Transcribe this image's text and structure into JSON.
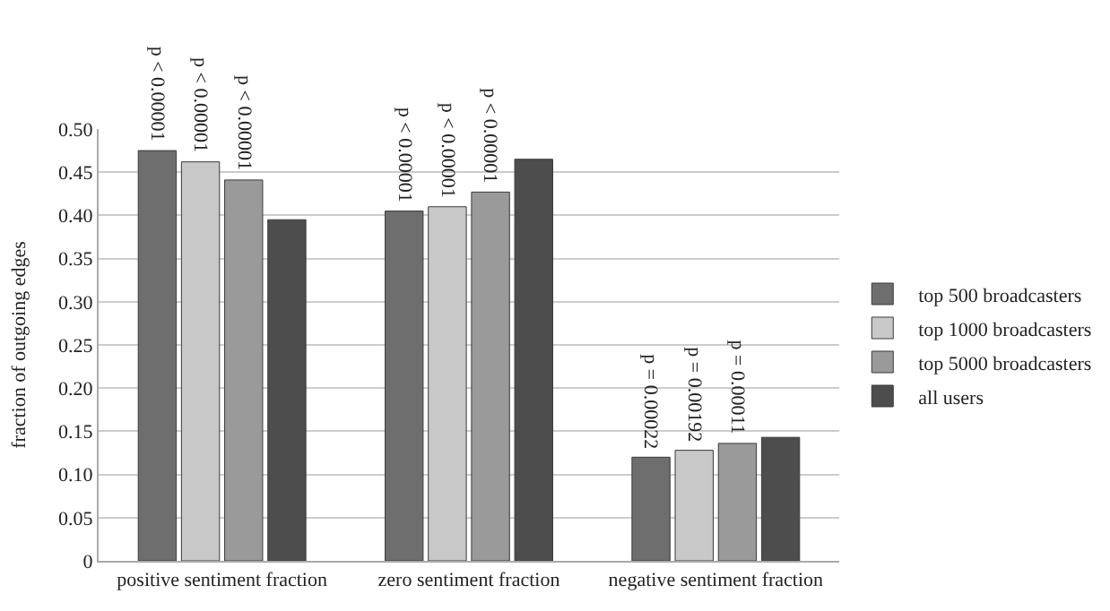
{
  "chart_data": {
    "type": "bar",
    "ylabel": "fraction of outgoing edges",
    "categories": [
      "positive sentiment fraction",
      "zero sentiment fraction",
      "negative sentiment fraction"
    ],
    "series": [
      {
        "name": "top 500 broadcasters",
        "color": "#6e6e6e",
        "values": [
          0.475,
          0.405,
          0.12
        ]
      },
      {
        "name": "top 1000 broadcasters",
        "color": "#c8c8c8",
        "values": [
          0.462,
          0.41,
          0.128
        ]
      },
      {
        "name": "top 5000 broadcasters",
        "color": "#9a9a9a",
        "values": [
          0.441,
          0.427,
          0.136
        ]
      },
      {
        "name": "all users",
        "color": "#4d4d4d",
        "values": [
          0.395,
          0.465,
          0.143
        ]
      }
    ],
    "annotations": [
      "p < 0.00001",
      "p < 0.00001",
      "p < 0.00001",
      "p < 0.00001",
      "p < 0.00001",
      "p < 0.00001",
      "p = 0.00022",
      "p = 0.00192",
      "p = 0.00011"
    ],
    "ylim": [
      0,
      0.5
    ],
    "yticks": [
      {
        "value": 0,
        "label": "0"
      },
      {
        "value": 0.05,
        "label": "0.05"
      },
      {
        "value": 0.1,
        "label": "0.10"
      },
      {
        "value": 0.15,
        "label": "0.15"
      },
      {
        "value": 0.2,
        "label": "0.20"
      },
      {
        "value": 0.25,
        "label": "0.25"
      },
      {
        "value": 0.3,
        "label": "0.30"
      },
      {
        "value": 0.35,
        "label": "0.35"
      },
      {
        "value": 0.4,
        "label": "0.40"
      },
      {
        "value": 0.45,
        "label": "0.45"
      },
      {
        "value": 0.5,
        "label": "0.50"
      }
    ],
    "grid": "y",
    "legend": "right"
  }
}
